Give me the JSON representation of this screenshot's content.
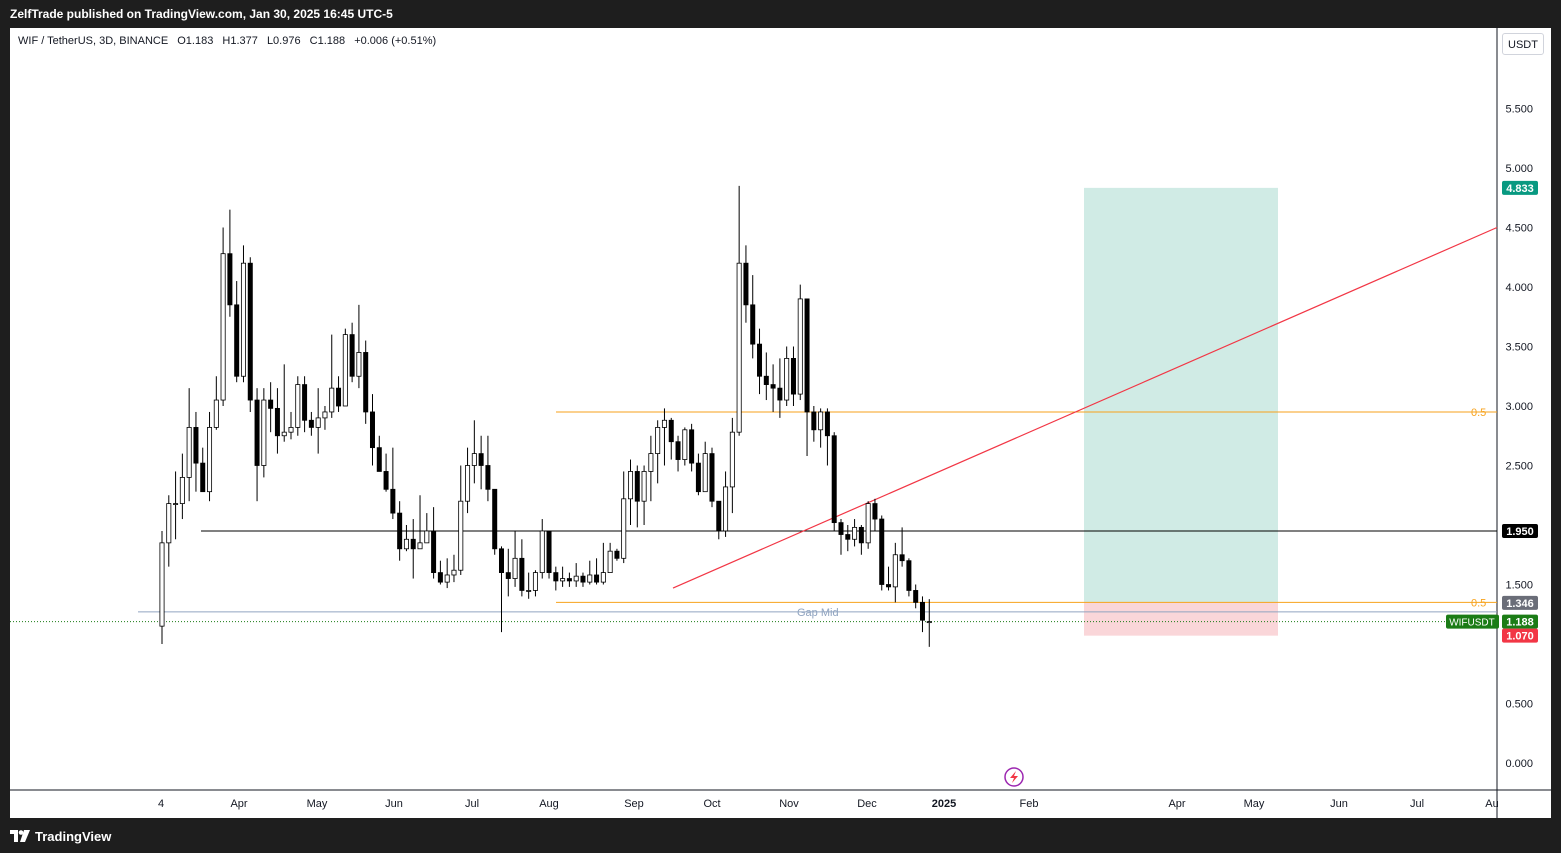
{
  "header": {
    "published": "ZelfTrade published on TradingView.com, Jan 30, 2025 16:45 UTC-5"
  },
  "legend": {
    "symbol": "WIF / TetherUS, 3D, BINANCE",
    "open": "O1.183",
    "high": "H1.377",
    "low": "L0.976",
    "close": "C1.188",
    "change": "+0.006 (+0.51%)"
  },
  "currency": "USDT",
  "footer": {
    "brand": "TradingView"
  },
  "colors": {
    "up": "#ffffff",
    "down": "#000000",
    "wick": "#000000",
    "fib": "#f7a21b",
    "trendline": "#f23645",
    "support": "#000000",
    "gap_mid": "#90a4c0",
    "target_zone": "#d0ebe5",
    "stop_zone": "#fad6d9",
    "target_label": "#089981",
    "stop_label": "#f23645",
    "price_label": "#1b7c16",
    "grey_label": "#6a6d78"
  },
  "chart_data": {
    "type": "candlestick",
    "title": "WIF / TetherUS, 3D, BINANCE",
    "ylim": [
      -0.1,
      5.95
    ],
    "y_ticks": [
      "5.500",
      "5.000",
      "4.500",
      "4.000",
      "3.500",
      "3.000",
      "2.500",
      "1.500",
      "0.500",
      "0.000"
    ],
    "x_ticks": [
      "4",
      "Apr",
      "May",
      "Jun",
      "Jul",
      "Aug",
      "Sep",
      "Oct",
      "Nov",
      "Dec",
      "2025",
      "Feb",
      "Apr",
      "May",
      "Jun",
      "Jul",
      "Au"
    ],
    "candles": [
      [
        1.15,
        1.85,
        1.95,
        1.0
      ],
      [
        1.85,
        2.18,
        2.25,
        1.65
      ],
      [
        2.18,
        2.18,
        2.45,
        1.88
      ],
      [
        2.18,
        2.4,
        2.6,
        2.05
      ],
      [
        2.4,
        2.82,
        3.15,
        2.2
      ],
      [
        2.82,
        2.52,
        2.95,
        2.28
      ],
      [
        2.52,
        2.28,
        2.65,
        2.28
      ],
      [
        2.28,
        2.82,
        2.95,
        2.2
      ],
      [
        2.82,
        3.05,
        3.25,
        2.8
      ],
      [
        3.05,
        4.28,
        4.5,
        3.0
      ],
      [
        4.28,
        3.85,
        4.65,
        3.75
      ],
      [
        3.85,
        3.25,
        4.05,
        3.2
      ],
      [
        3.25,
        4.2,
        4.35,
        3.2
      ],
      [
        4.2,
        3.05,
        4.25,
        2.95
      ],
      [
        3.05,
        2.5,
        3.15,
        2.2
      ],
      [
        2.5,
        3.05,
        3.15,
        2.4
      ],
      [
        3.05,
        2.98,
        3.2,
        2.78
      ],
      [
        2.98,
        2.75,
        3.15,
        2.6
      ],
      [
        2.75,
        2.78,
        3.35,
        2.7
      ],
      [
        2.78,
        2.82,
        2.95,
        2.72
      ],
      [
        2.82,
        3.18,
        3.25,
        2.75
      ],
      [
        3.18,
        2.88,
        3.25,
        2.78
      ],
      [
        2.88,
        2.82,
        2.95,
        2.75
      ],
      [
        2.82,
        2.9,
        3.15,
        2.6
      ],
      [
        2.9,
        2.95,
        3.0,
        2.8
      ],
      [
        2.95,
        3.15,
        3.6,
        2.9
      ],
      [
        3.15,
        3.0,
        3.25,
        2.95
      ],
      [
        3.0,
        3.6,
        3.65,
        3.05
      ],
      [
        3.6,
        3.25,
        3.7,
        3.2
      ],
      [
        3.25,
        3.45,
        3.85,
        3.15
      ],
      [
        3.45,
        2.95,
        3.55,
        2.85
      ],
      [
        2.95,
        2.65,
        3.1,
        2.5
      ],
      [
        2.65,
        2.45,
        2.75,
        2.45
      ],
      [
        2.45,
        2.3,
        2.6,
        2.28
      ],
      [
        2.3,
        2.1,
        2.65,
        2.05
      ],
      [
        2.1,
        1.8,
        2.2,
        1.7
      ],
      [
        1.8,
        1.88,
        2.0,
        1.78
      ],
      [
        1.88,
        1.8,
        2.05,
        1.55
      ],
      [
        1.8,
        1.85,
        2.25,
        1.8
      ],
      [
        1.85,
        1.95,
        2.1,
        1.95
      ],
      [
        1.95,
        1.6,
        2.15,
        1.55
      ],
      [
        1.6,
        1.52,
        1.7,
        1.5
      ],
      [
        1.52,
        1.58,
        1.72,
        1.47
      ],
      [
        1.58,
        1.62,
        1.75,
        1.52
      ],
      [
        1.62,
        2.2,
        2.5,
        1.58
      ],
      [
        2.2,
        2.5,
        2.65,
        2.1
      ],
      [
        2.5,
        2.6,
        2.88,
        2.35
      ],
      [
        2.6,
        2.5,
        2.75,
        2.3
      ],
      [
        2.5,
        2.3,
        2.75,
        2.2
      ],
      [
        2.3,
        1.8,
        2.3,
        1.75
      ],
      [
        1.8,
        1.6,
        1.82,
        1.1
      ],
      [
        1.6,
        1.55,
        1.8,
        1.4
      ],
      [
        1.55,
        1.72,
        1.95,
        1.48
      ],
      [
        1.72,
        1.45,
        1.88,
        1.4
      ],
      [
        1.45,
        1.45,
        1.6,
        1.38
      ],
      [
        1.45,
        1.6,
        1.62,
        1.4
      ],
      [
        1.6,
        1.95,
        2.05,
        1.55
      ],
      [
        1.95,
        1.6,
        1.95,
        1.55
      ],
      [
        1.6,
        1.53,
        1.65,
        1.45
      ],
      [
        1.53,
        1.55,
        1.65,
        1.48
      ],
      [
        1.55,
        1.53,
        1.6,
        1.48
      ],
      [
        1.53,
        1.57,
        1.68,
        1.48
      ],
      [
        1.57,
        1.52,
        1.6,
        1.48
      ],
      [
        1.52,
        1.58,
        1.7,
        1.5
      ],
      [
        1.58,
        1.52,
        1.72,
        1.5
      ],
      [
        1.52,
        1.6,
        1.85,
        1.5
      ],
      [
        1.6,
        1.78,
        1.85,
        1.72
      ],
      [
        1.78,
        1.72,
        1.8,
        1.7
      ],
      [
        1.72,
        2.22,
        2.45,
        1.68
      ],
      [
        2.22,
        2.45,
        2.55,
        2.0
      ],
      [
        2.45,
        2.2,
        2.5,
        1.98
      ],
      [
        2.2,
        2.45,
        2.5,
        2.0
      ],
      [
        2.45,
        2.6,
        2.75,
        2.2
      ],
      [
        2.6,
        2.82,
        2.88,
        2.35
      ],
      [
        2.82,
        2.88,
        2.98,
        2.5
      ],
      [
        2.88,
        2.7,
        2.9,
        2.55
      ],
      [
        2.7,
        2.55,
        2.75,
        2.45
      ],
      [
        2.55,
        2.8,
        2.82,
        2.5
      ],
      [
        2.8,
        2.52,
        2.85,
        2.45
      ],
      [
        2.52,
        2.28,
        2.6,
        2.25
      ],
      [
        2.28,
        2.6,
        2.7,
        2.3
      ],
      [
        2.6,
        2.2,
        2.65,
        2.15
      ],
      [
        2.2,
        1.95,
        2.2,
        1.88
      ],
      [
        1.95,
        2.32,
        2.45,
        1.9
      ],
      [
        2.32,
        2.78,
        2.9,
        2.1
      ],
      [
        2.78,
        4.2,
        4.85,
        2.75
      ],
      [
        4.2,
        3.85,
        4.35,
        3.7
      ],
      [
        3.85,
        3.52,
        4.1,
        3.4
      ],
      [
        3.52,
        3.25,
        3.65,
        3.1
      ],
      [
        3.25,
        3.18,
        3.45,
        3.05
      ],
      [
        3.18,
        3.15,
        3.35,
        2.95
      ],
      [
        3.15,
        3.05,
        3.4,
        2.9
      ],
      [
        3.05,
        3.4,
        3.5,
        3.0
      ],
      [
        3.4,
        3.1,
        3.5,
        3.0
      ],
      [
        3.1,
        3.9,
        4.02,
        3.05
      ],
      [
        3.9,
        2.95,
        3.9,
        2.58
      ],
      [
        2.95,
        2.8,
        3.0,
        2.7
      ],
      [
        2.8,
        2.95,
        2.98,
        2.65
      ],
      [
        2.95,
        2.75,
        2.98,
        2.5
      ],
      [
        2.75,
        2.02,
        2.78,
        1.95
      ],
      [
        2.02,
        1.92,
        2.05,
        1.75
      ],
      [
        1.92,
        1.88,
        2.0,
        1.78
      ],
      [
        1.88,
        1.98,
        2.05,
        1.82
      ],
      [
        1.98,
        1.85,
        2.0,
        1.75
      ],
      [
        1.85,
        2.18,
        2.2,
        1.8
      ],
      [
        2.18,
        2.05,
        2.22,
        1.95
      ],
      [
        2.05,
        1.5,
        2.08,
        1.45
      ],
      [
        1.5,
        1.48,
        1.65,
        1.45
      ],
      [
        1.48,
        1.75,
        1.85,
        1.35
      ],
      [
        1.75,
        1.7,
        1.98,
        1.65
      ],
      [
        1.7,
        1.45,
        1.72,
        1.4
      ],
      [
        1.45,
        1.35,
        1.5,
        1.3
      ],
      [
        1.35,
        1.2,
        1.4,
        1.1
      ],
      [
        1.183,
        1.188,
        1.377,
        0.976
      ]
    ],
    "x_tick_positions_note": "tick labels placed along the time axis",
    "annotations": {
      "target_price": "4.833",
      "stop_price": "1.070",
      "entry_price": "1.346",
      "current_price": "1.188",
      "current_symbol": "WIFUSDT",
      "support_level": "1.950",
      "support_value": 1.95,
      "gap_mid_label": "Gap Mid",
      "gap_mid_value": 1.27,
      "fib_label": "0.5",
      "fib_upper_value": 2.95,
      "fib_lower_value": 1.35,
      "trendline": {
        "start_value": 1.47,
        "end_value": 4.5
      }
    }
  }
}
